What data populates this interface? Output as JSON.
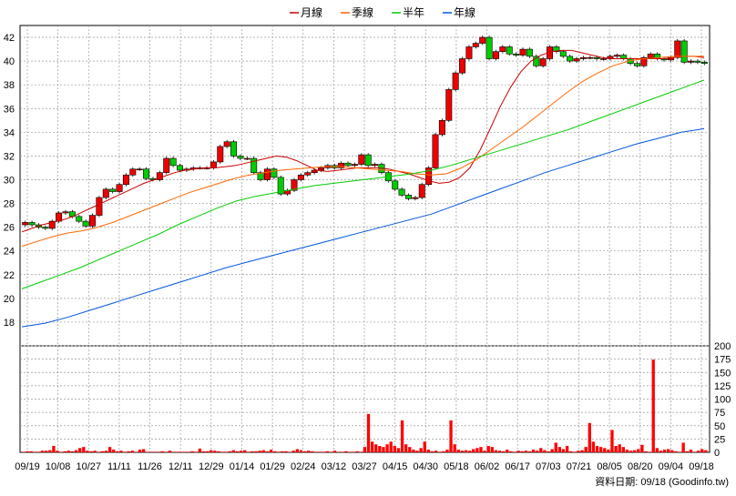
{
  "chart_data": {
    "type": "candlestick+line+bar",
    "legend": [
      {
        "label": "月線",
        "color": "#cc0000"
      },
      {
        "label": "季線",
        "color": "#ff6600"
      },
      {
        "label": "半年",
        "color": "#00cc00"
      },
      {
        "label": "年線",
        "color": "#0055dd"
      }
    ],
    "price_axis": {
      "min": 16,
      "max": 43,
      "ticks": [
        18,
        20,
        22,
        24,
        26,
        28,
        30,
        32,
        34,
        36,
        38,
        40,
        42
      ]
    },
    "volume_axis": {
      "min": 0,
      "max": 200,
      "ticks": [
        0,
        25,
        50,
        75,
        100,
        125,
        150,
        175,
        200
      ]
    },
    "x_labels": [
      "09/19",
      "10/08",
      "10/27",
      "11/11",
      "11/26",
      "12/11",
      "12/29",
      "01/14",
      "01/29",
      "02/24",
      "03/12",
      "03/27",
      "04/15",
      "04/30",
      "05/18",
      "06/02",
      "06/17",
      "07/03",
      "07/21",
      "08/05",
      "08/20",
      "09/04",
      "09/18"
    ],
    "price_close": [
      26.4,
      26.2,
      26.0,
      25.9,
      26.5,
      27.2,
      27.3,
      26.9,
      26.5,
      26.1,
      27.0,
      28.5,
      29.2,
      29.0,
      29.6,
      30.4,
      30.9,
      30.9,
      30.1,
      30.0,
      30.6,
      31.8,
      31.2,
      30.8,
      30.9,
      31.0,
      31.0,
      31.0,
      31.5,
      32.8,
      33.2,
      32.0,
      31.8,
      31.8,
      30.6,
      30.0,
      30.9,
      30.2,
      28.8,
      29.1,
      30.0,
      30.4,
      30.6,
      30.8,
      31.0,
      31.2,
      31.0,
      31.4,
      31.2,
      31.3,
      32.1,
      31.2,
      31.3,
      30.6,
      29.9,
      29.2,
      28.7,
      28.4,
      28.5,
      29.6,
      31.0,
      33.8,
      35.0,
      37.6,
      39.0,
      40.2,
      41.2,
      41.5,
      42.0,
      40.2,
      40.8,
      41.2,
      40.6,
      40.5,
      41.0,
      40.4,
      39.6,
      40.2,
      41.2,
      40.8,
      40.4,
      40.0,
      40.2,
      40.3,
      40.3,
      40.2,
      40.2,
      40.4,
      40.5,
      40.2,
      39.8,
      39.6,
      40.3,
      40.6,
      40.2,
      40.1,
      40.3,
      41.7,
      39.9,
      40.0,
      39.9,
      39.8
    ],
    "ma_month": [
      25.6,
      25.9,
      26.2,
      26.4,
      26.6,
      26.9,
      27.3,
      27.7,
      28.1,
      28.5,
      28.9,
      29.3,
      29.7,
      30.0,
      30.3,
      30.6,
      30.8,
      30.9,
      31.0,
      31.0,
      31.1,
      31.2,
      31.4,
      31.6,
      31.8,
      32.0,
      31.9,
      31.6,
      31.2,
      30.8,
      30.7,
      30.8,
      30.9,
      31.0,
      31.0,
      31.0,
      30.9,
      30.7,
      30.5,
      30.2,
      29.9,
      29.7,
      29.8,
      30.2,
      31.0,
      32.5,
      34.3,
      36.2,
      37.8,
      39.1,
      40.0,
      40.5,
      40.8,
      40.9,
      40.9,
      40.7,
      40.5,
      40.3,
      40.2,
      40.2,
      40.2,
      40.2,
      40.2,
      40.2,
      40.3,
      40.4,
      40.4,
      40.3
    ],
    "ma_quarter": [
      24.4,
      24.8,
      25.2,
      25.5,
      25.7,
      26.0,
      26.4,
      26.9,
      27.4,
      27.9,
      28.4,
      28.9,
      29.3,
      29.7,
      30.1,
      30.4,
      30.6,
      30.8,
      30.9,
      31.0,
      31.1,
      31.1,
      31.0,
      30.9,
      30.8,
      30.7,
      30.5,
      30.4,
      30.5,
      31.0,
      31.7,
      32.6,
      33.5,
      34.4,
      35.4,
      36.4,
      37.4,
      38.3,
      39.0,
      39.6,
      40.0,
      40.2,
      40.3,
      40.4,
      40.4,
      40.4
    ],
    "ma_half": [
      20.8,
      21.4,
      22.0,
      22.6,
      23.3,
      24.0,
      24.7,
      25.4,
      26.2,
      26.9,
      27.6,
      28.2,
      28.6,
      28.9,
      29.2,
      29.5,
      29.7,
      29.9,
      30.1,
      30.3,
      30.5,
      30.8,
      31.2,
      31.7,
      32.2,
      32.7,
      33.2,
      33.7,
      34.2,
      34.8,
      35.4,
      36.0,
      36.6,
      37.2,
      37.8,
      38.4
    ],
    "ma_year": [
      17.6,
      17.9,
      18.4,
      19.0,
      19.6,
      20.2,
      20.8,
      21.4,
      22.0,
      22.6,
      23.1,
      23.6,
      24.1,
      24.6,
      25.1,
      25.6,
      26.1,
      26.6,
      27.1,
      27.8,
      28.5,
      29.2,
      29.9,
      30.6,
      31.2,
      31.8,
      32.4,
      33.0,
      33.5,
      34.0,
      34.3
    ],
    "volume": [
      1,
      2,
      2,
      1,
      1,
      3,
      3,
      4,
      12,
      3,
      1,
      2,
      3,
      2,
      4,
      8,
      10,
      3,
      2,
      3,
      1,
      2,
      3,
      10,
      5,
      2,
      3,
      1,
      2,
      3,
      1,
      5,
      6,
      1,
      1,
      1,
      1,
      2,
      1,
      3,
      1,
      1,
      1,
      1,
      1,
      2,
      1,
      7,
      2,
      2,
      4,
      3,
      2,
      1,
      1,
      2,
      4,
      2,
      3,
      4,
      1,
      2,
      2,
      3,
      4,
      2,
      5,
      2,
      1,
      2,
      2,
      1,
      3,
      6,
      4,
      2,
      3,
      2,
      1,
      1,
      1,
      2,
      1,
      3,
      1,
      1,
      2,
      1,
      1,
      2,
      1,
      10,
      72,
      20,
      15,
      12,
      10,
      15,
      20,
      12,
      8,
      60,
      15,
      10,
      5,
      3,
      8,
      20,
      5,
      2,
      3,
      1,
      2,
      5,
      60,
      15,
      5,
      3,
      4,
      3,
      6,
      8,
      10,
      3,
      12,
      10,
      4,
      3,
      2,
      5,
      2,
      1,
      3,
      2,
      3,
      2,
      5,
      3,
      8,
      4,
      2,
      6,
      18,
      10,
      6,
      12,
      2,
      1,
      3,
      4,
      10,
      55,
      20,
      12,
      10,
      8,
      5,
      42,
      12,
      15,
      10,
      5,
      3,
      4,
      6,
      14,
      2,
      1,
      174,
      8,
      3,
      5,
      6,
      4,
      2,
      1,
      18,
      2,
      5,
      1,
      3,
      6,
      4
    ],
    "footer": "資料日期: 09/18  (Goodinfo.tw)"
  }
}
